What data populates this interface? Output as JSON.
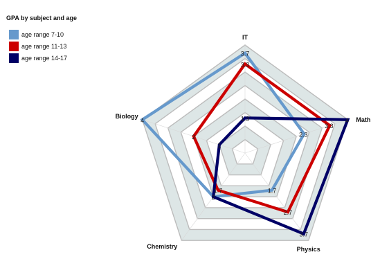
{
  "chart_data": {
    "type": "radar",
    "title": "GPA by subject and age",
    "axes": [
      "IT",
      "Math",
      "Physics",
      "Chemistry",
      "Biology"
    ],
    "range": [
      0,
      4
    ],
    "legend_position": "top-left",
    "series": [
      {
        "name": "age range 7-10",
        "color": "#6699cc",
        "values": [
          3.7,
          2.3,
          1.7,
          2,
          4
        ]
      },
      {
        "name": "age range 11-13",
        "color": "#cc0000",
        "values": [
          3.3,
          3.3,
          2.7,
          1.7,
          2
        ]
      },
      {
        "name": "age range 14-17",
        "color": "#000066",
        "values": [
          1.3,
          4,
          3.7,
          2,
          1
        ]
      }
    ]
  }
}
